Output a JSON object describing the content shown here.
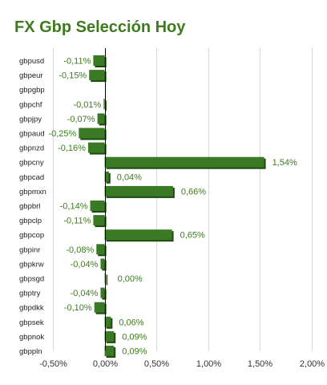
{
  "chart_data": {
    "type": "bar",
    "orientation": "horizontal",
    "title": "FX Gbp Selección Hoy",
    "categories": [
      "gbpusd",
      "gbpeur",
      "gbpgbp",
      "gbpchf",
      "gbpjpy",
      "gbpaud",
      "gbpnzd",
      "gbpcny",
      "gbpcad",
      "gbpmxn",
      "gbpbrl",
      "gbpclp",
      "gbpcop",
      "gbpinr",
      "gbpkrw",
      "gbpsgd",
      "gbptry",
      "gbpdkk",
      "gbpsek",
      "gbpnok",
      "gbppln"
    ],
    "values": [
      -0.11,
      -0.15,
      null,
      -0.01,
      -0.07,
      -0.25,
      -0.16,
      1.54,
      0.04,
      0.66,
      -0.14,
      -0.11,
      0.65,
      -0.08,
      -0.04,
      0.0,
      -0.04,
      -0.1,
      0.06,
      0.09,
      0.09
    ],
    "value_labels": [
      "-0,11%",
      "-0,15%",
      "",
      "-0,01%",
      "-0,07%",
      "-0,25%",
      "-0,16%",
      "1,54%",
      "0,04%",
      "0,66%",
      "-0,14%",
      "-0,11%",
      "0,65%",
      "-0,08%",
      "-0,04%",
      "0,00%",
      "-0,04%",
      "-0,10%",
      "0,06%",
      "0,09%",
      "0,09%"
    ],
    "xlim": [
      -0.5,
      2.0
    ],
    "x_ticks": [
      -0.5,
      0.0,
      0.5,
      1.0,
      1.5,
      2.0
    ],
    "x_tick_labels": [
      "-0,50%",
      "0,00%",
      "0,50%",
      "1,00%",
      "1,50%",
      "2,00%"
    ],
    "xlabel": "",
    "ylabel": "",
    "grid": true,
    "legend": "none",
    "colors": {
      "bar": "#3a7a24",
      "bar_shadow": "#1e4a10",
      "title": "#3e7a1e",
      "value_label": "#3e7a1e",
      "grid": "#d8d8d8"
    }
  }
}
